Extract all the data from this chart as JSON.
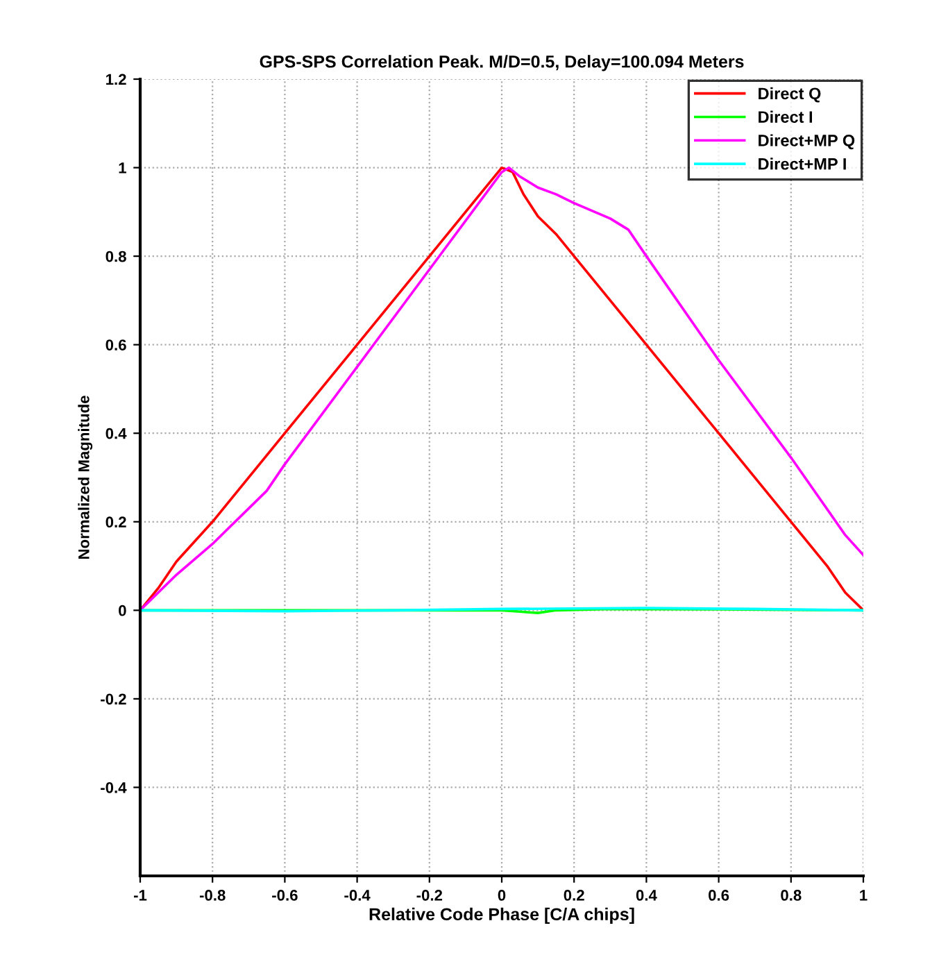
{
  "chart_data": {
    "type": "line",
    "title": "GPS-SPS Correlation Peak. M/D=0.5, Delay=100.094 Meters",
    "xlabel": "Relative Code Phase [C/A chips]",
    "ylabel": "Normalized Magnitude",
    "xlim": [
      -1,
      1
    ],
    "ylim": [
      -0.6,
      1.2
    ],
    "xticks": [
      -1,
      -0.8,
      -0.6,
      -0.4,
      -0.2,
      0,
      0.2,
      0.4,
      0.6,
      0.8,
      1
    ],
    "yticks": [
      -0.4,
      -0.2,
      0,
      0.2,
      0.4,
      0.6,
      0.8,
      1,
      1.2
    ],
    "grid": true,
    "legend": "top right",
    "line_style": "solid",
    "marker": "none",
    "series": [
      {
        "name": "Direct Q",
        "color": "#ff0000",
        "x": [
          -1,
          -0.95,
          -0.9,
          -0.8,
          -0.6,
          -0.4,
          -0.2,
          -0.05,
          0,
          0.03,
          0.06,
          0.1,
          0.15,
          0.2,
          0.4,
          0.6,
          0.8,
          0.9,
          0.95,
          1
        ],
        "values": [
          0,
          0.05,
          0.11,
          0.2,
          0.4,
          0.6,
          0.8,
          0.95,
          1,
          0.99,
          0.94,
          0.89,
          0.85,
          0.8,
          0.6,
          0.4,
          0.2,
          0.1,
          0.04,
          0
        ]
      },
      {
        "name": "Direct I",
        "color": "#00ff00",
        "x": [
          -1,
          0,
          0.05,
          0.1,
          0.15,
          0.3,
          0.6,
          1
        ],
        "values": [
          0,
          0,
          -0.003,
          -0.006,
          0,
          0.003,
          0.002,
          0
        ]
      },
      {
        "name": "Direct+MP Q",
        "color": "#ff00ff",
        "x": [
          -1,
          -0.9,
          -0.8,
          -0.7,
          -0.65,
          -0.6,
          -0.4,
          -0.2,
          0,
          0.02,
          0.05,
          0.1,
          0.15,
          0.2,
          0.3,
          0.35,
          0.4,
          0.6,
          0.8,
          0.95,
          1
        ],
        "values": [
          0,
          0.08,
          0.15,
          0.23,
          0.27,
          0.33,
          0.55,
          0.77,
          0.99,
          1,
          0.98,
          0.955,
          0.94,
          0.92,
          0.885,
          0.86,
          0.8,
          0.565,
          0.345,
          0.17,
          0.125
        ]
      },
      {
        "name": "Direct+MP I",
        "color": "#00ffff",
        "x": [
          -1,
          -0.6,
          -0.3,
          0,
          0.2,
          0.4,
          0.7,
          1
        ],
        "values": [
          0,
          -0.002,
          0,
          0.003,
          0.004,
          0.005,
          0.003,
          0
        ]
      }
    ]
  }
}
